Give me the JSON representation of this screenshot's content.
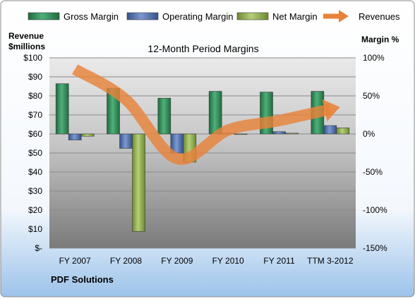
{
  "chart_data": {
    "type": "bar",
    "title": "12-Month Period Margins",
    "company_label": "PDF Solutions",
    "left_axis": {
      "title_line1": "Revenue",
      "title_line2": "$millions",
      "range": [
        0,
        100
      ],
      "ticks": [
        "$-",
        "$10",
        "$20",
        "$30",
        "$40",
        "$50",
        "$60",
        "$70",
        "$80",
        "$90",
        "$100"
      ]
    },
    "right_axis": {
      "title": "Margin %",
      "range": [
        -150,
        100
      ],
      "ticks": [
        "100%",
        "50%",
        "0%",
        "-50%",
        "-100%",
        "-150%"
      ]
    },
    "categories": [
      "FY 2007",
      "FY 2008",
      "FY 2009",
      "FY 2010",
      "FY 2011",
      "TTM 3-2012"
    ],
    "series": [
      {
        "name": "Gross Margin",
        "type": "bar",
        "axis": "right",
        "color": "#2e8b57",
        "values": [
          66,
          60,
          47,
          56,
          55,
          56
        ]
      },
      {
        "name": "Operating Margin",
        "type": "bar",
        "axis": "right",
        "color": "#4f6fb0",
        "values": [
          -8,
          -19,
          -25,
          1,
          3,
          11
        ]
      },
      {
        "name": "Net Margin",
        "type": "bar",
        "axis": "right",
        "color": "#8fb04a",
        "values": [
          -3,
          -128,
          -37,
          0,
          1,
          8
        ]
      },
      {
        "name": "Revenues",
        "type": "line",
        "axis": "left",
        "color": "#e8833a",
        "values": [
          94,
          78,
          47,
          62,
          67,
          73
        ]
      }
    ],
    "grid": true,
    "legend": "top"
  }
}
